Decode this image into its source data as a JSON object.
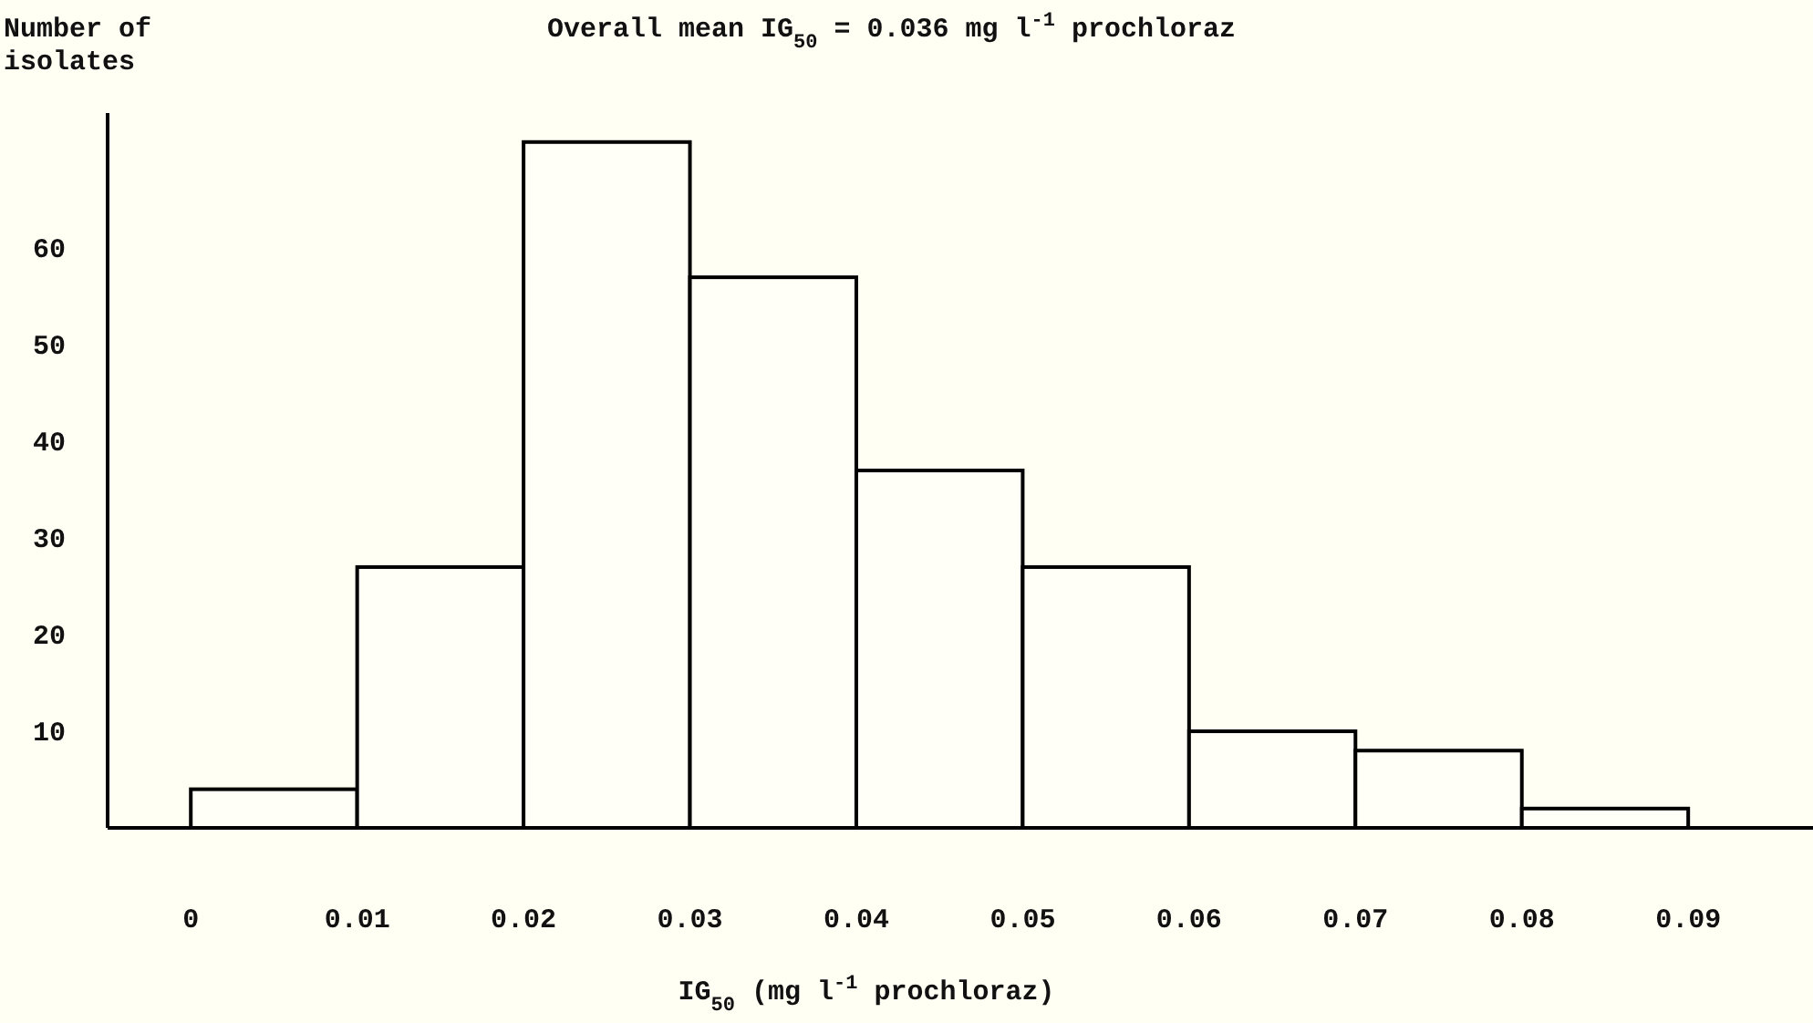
{
  "chart_data": {
    "type": "histogram",
    "title": "Overall mean IG$_{50}$ = 0.036 mg l$^{-1}$ prochloraz",
    "xlabel": "IG$_{50}$ (mg l$^{-1}$ prochloraz)",
    "ylabel": "Number of isolates",
    "bins": [
      0,
      0.01,
      0.02,
      0.03,
      0.04,
      0.05,
      0.06,
      0.07,
      0.08,
      0.09
    ],
    "values": [
      4,
      27,
      71,
      57,
      37,
      27,
      10,
      8,
      2
    ],
    "color": "#fffff8",
    "xlim": [
      -0.005,
      0.0975
    ],
    "xticks": [
      0,
      0.01,
      0.02,
      0.03,
      0.04,
      0.05,
      0.06,
      0.07,
      0.08,
      0.09
    ],
    "ylim": [
      0,
      74
    ],
    "yticks": [
      10,
      20,
      30,
      40,
      50,
      60
    ],
    "grid": false
  }
}
